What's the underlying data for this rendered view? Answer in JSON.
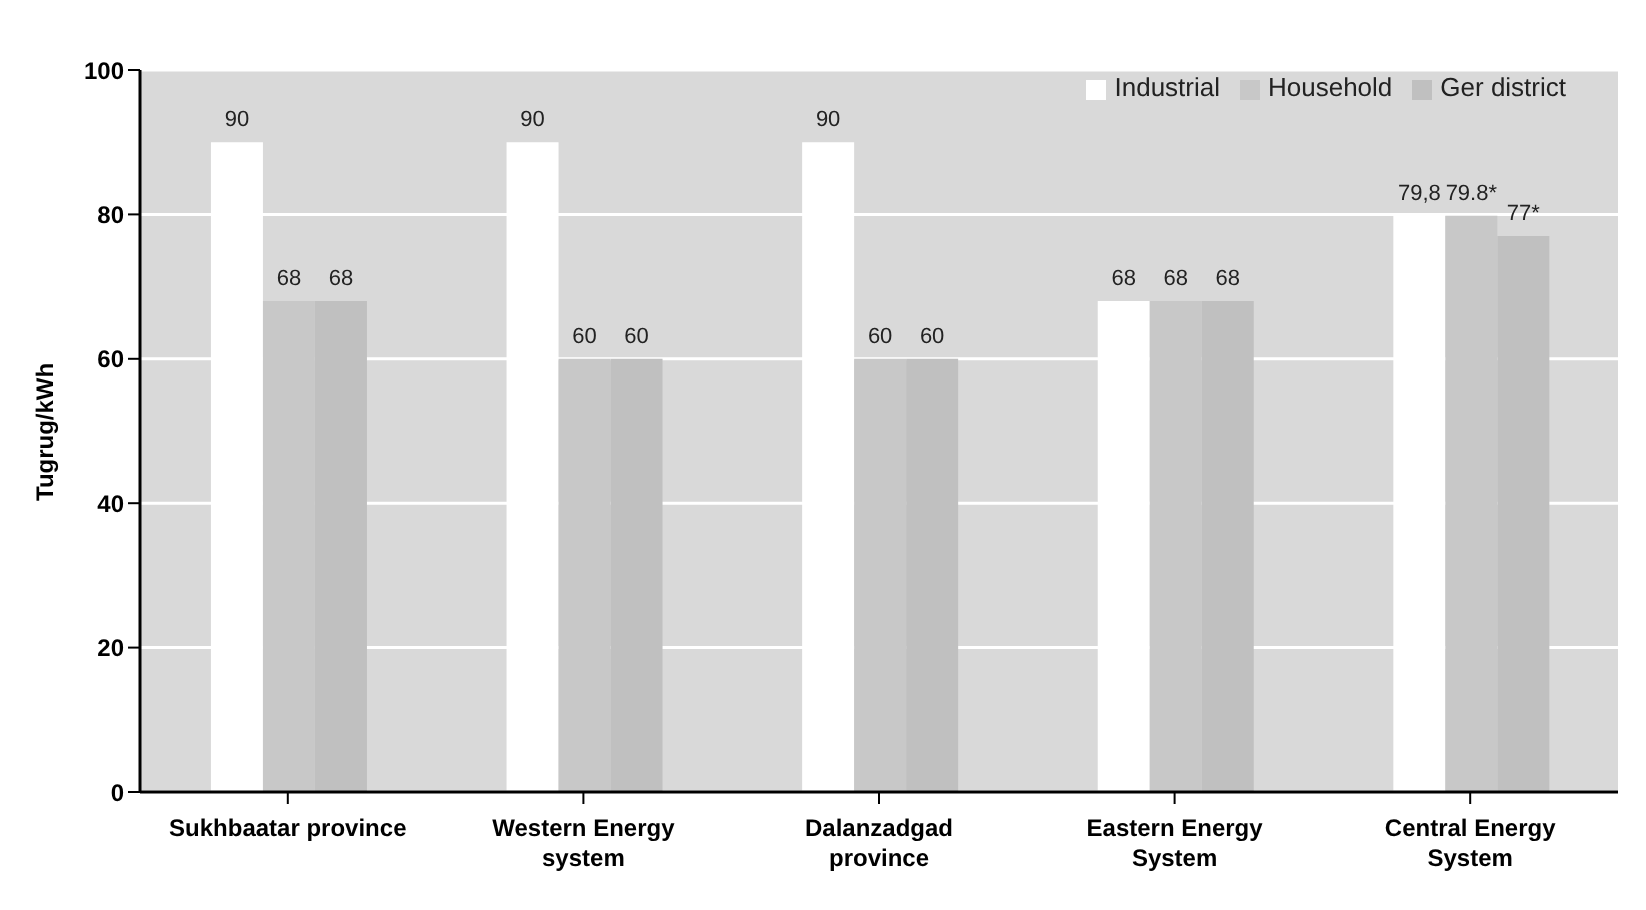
{
  "chart_data": {
    "type": "bar",
    "ylabel": "Tugrug/kWh",
    "categories": [
      "Sukhbaatar province",
      "Western Energy system",
      "Dalanzadgad province",
      "Eastern Energy System",
      "Central Energy System"
    ],
    "series": [
      {
        "name": "Industrial",
        "color": "#ffffff",
        "values": [
          90,
          90,
          90,
          68,
          79.8
        ],
        "value_labels": [
          "90",
          "90",
          "90",
          "68",
          "79,8"
        ]
      },
      {
        "name": "Household",
        "color": "#c8c8c8",
        "values": [
          68,
          60,
          60,
          68,
          79.8
        ],
        "value_labels": [
          "68",
          "60",
          "60",
          "68",
          "79.8*"
        ]
      },
      {
        "name": "Ger district",
        "color": "#c0c0c0",
        "values": [
          68,
          60,
          60,
          68,
          77
        ],
        "value_labels": [
          "68",
          "60",
          "60",
          "68",
          "77*"
        ]
      }
    ],
    "ylim": [
      0,
      100
    ],
    "yticks": [
      0,
      20,
      40,
      60,
      80,
      100
    ],
    "grid": "y",
    "legend": "top right"
  }
}
